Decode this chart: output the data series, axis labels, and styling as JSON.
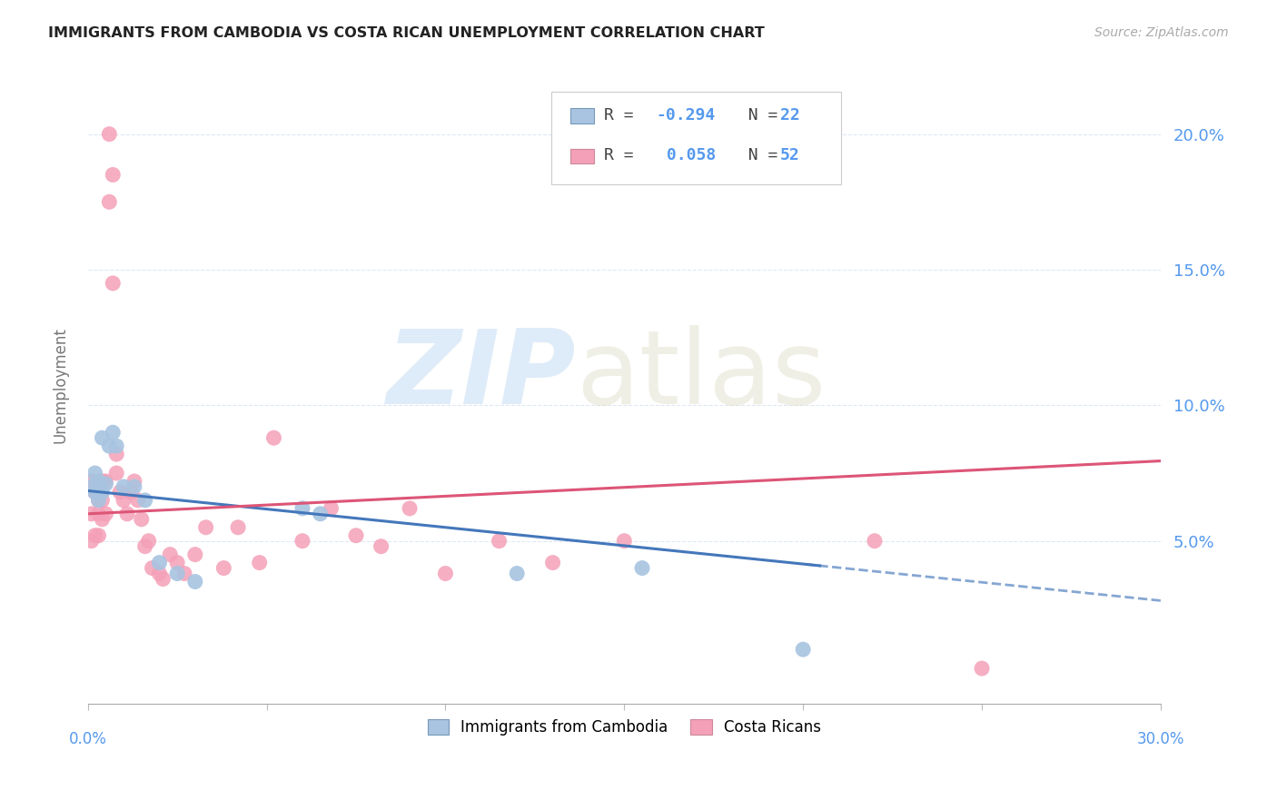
{
  "title": "IMMIGRANTS FROM CAMBODIA VS COSTA RICAN UNEMPLOYMENT CORRELATION CHART",
  "source": "Source: ZipAtlas.com",
  "ylabel": "Unemployment",
  "r_cambodia": -0.294,
  "n_cambodia": 22,
  "r_costarica": 0.058,
  "n_costarica": 52,
  "color_cambodia": "#a8c4e0",
  "color_costarica": "#f4a0b8",
  "color_cambodia_line": "#4477bb",
  "color_costarica_line": "#dd5577",
  "xlim": [
    0.0,
    0.3
  ],
  "ylim": [
    -0.01,
    0.225
  ],
  "ytick_values": [
    0.05,
    0.1,
    0.15,
    0.2
  ],
  "ytick_labels": [
    "5.0%",
    "10.0%",
    "15.0%",
    "20.0%"
  ],
  "xtick_values": [
    0.0,
    0.05,
    0.1,
    0.15,
    0.2,
    0.25,
    0.3
  ],
  "cambodia_x": [
    0.001,
    0.002,
    0.002,
    0.003,
    0.003,
    0.004,
    0.004,
    0.005,
    0.006,
    0.007,
    0.008,
    0.01,
    0.013,
    0.016,
    0.02,
    0.025,
    0.03,
    0.06,
    0.065,
    0.12,
    0.155,
    0.2
  ],
  "cambodia_y": [
    0.07,
    0.075,
    0.068,
    0.072,
    0.065,
    0.088,
    0.068,
    0.071,
    0.085,
    0.09,
    0.085,
    0.07,
    0.07,
    0.065,
    0.042,
    0.038,
    0.035,
    0.062,
    0.06,
    0.038,
    0.04,
    0.01
  ],
  "costarica_x": [
    0.001,
    0.001,
    0.001,
    0.002,
    0.002,
    0.003,
    0.003,
    0.003,
    0.003,
    0.004,
    0.004,
    0.004,
    0.005,
    0.005,
    0.006,
    0.006,
    0.007,
    0.007,
    0.008,
    0.008,
    0.009,
    0.01,
    0.011,
    0.012,
    0.013,
    0.014,
    0.015,
    0.016,
    0.017,
    0.018,
    0.02,
    0.021,
    0.023,
    0.025,
    0.027,
    0.03,
    0.033,
    0.038,
    0.042,
    0.048,
    0.052,
    0.06,
    0.068,
    0.075,
    0.082,
    0.09,
    0.1,
    0.115,
    0.13,
    0.15,
    0.22,
    0.25
  ],
  "costarica_y": [
    0.072,
    0.06,
    0.05,
    0.068,
    0.052,
    0.07,
    0.065,
    0.06,
    0.052,
    0.072,
    0.065,
    0.058,
    0.072,
    0.06,
    0.2,
    0.175,
    0.145,
    0.185,
    0.082,
    0.075,
    0.068,
    0.065,
    0.06,
    0.068,
    0.072,
    0.065,
    0.058,
    0.048,
    0.05,
    0.04,
    0.038,
    0.036,
    0.045,
    0.042,
    0.038,
    0.045,
    0.055,
    0.04,
    0.055,
    0.042,
    0.088,
    0.05,
    0.062,
    0.052,
    0.048,
    0.062,
    0.038,
    0.05,
    0.042,
    0.05,
    0.05,
    0.003
  ]
}
